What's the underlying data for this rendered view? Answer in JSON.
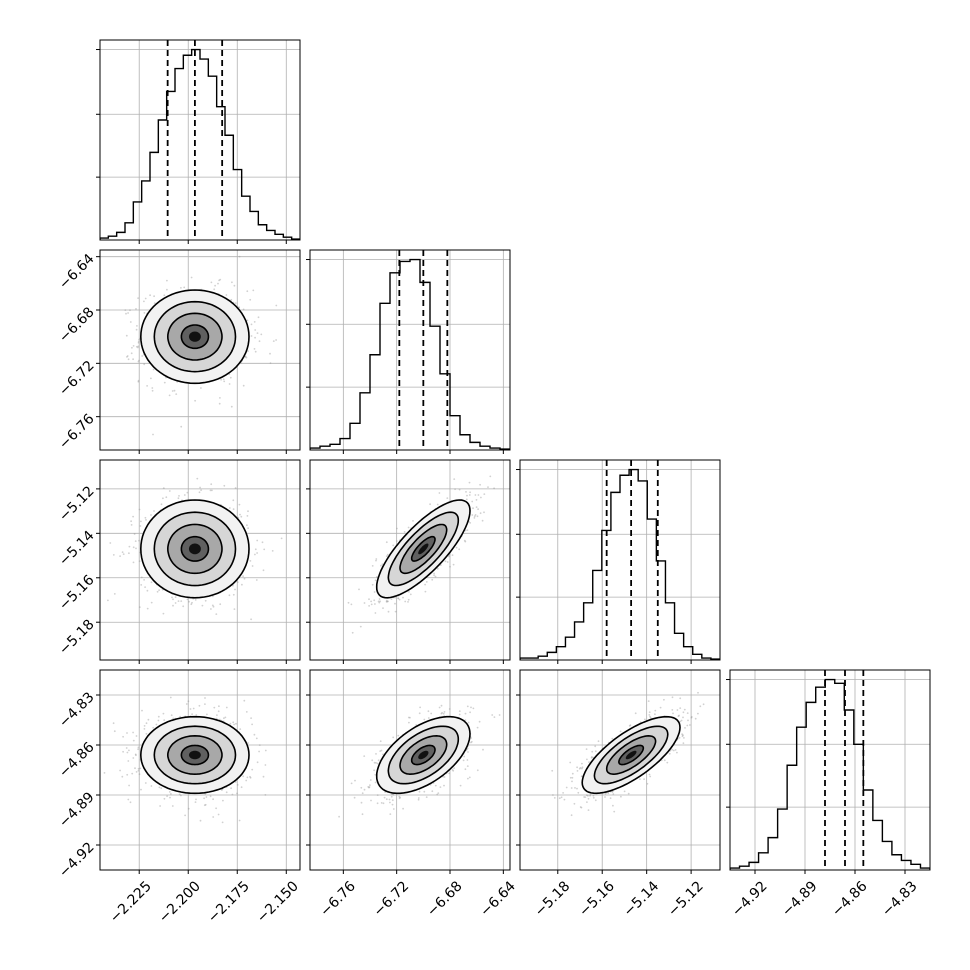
{
  "chart_data": {
    "type": "corner",
    "title": "",
    "parameters": [
      {
        "range": [
          -2.245,
          -2.143
        ],
        "ticks": [
          -2.225,
          -2.2,
          -2.175,
          -2.15
        ],
        "tick_labels": [
          "−2.225",
          "−2.200",
          "−2.175",
          "−2.150"
        ],
        "mean": -2.1966,
        "sigma": 0.0138,
        "quantiles": [
          -2.2105,
          -2.1966,
          -2.1827
        ],
        "hist_bins": [
          0.01,
          0.02,
          0.04,
          0.09,
          0.2,
          0.31,
          0.46,
          0.63,
          0.78,
          0.9,
          0.97,
          1.0,
          0.95,
          0.86,
          0.7,
          0.55,
          0.37,
          0.23,
          0.15,
          0.08,
          0.05,
          0.03,
          0.015,
          0.005
        ]
      },
      {
        "range": [
          -6.785,
          -6.635
        ],
        "ticks": [
          -6.76,
          -6.72,
          -6.68,
          -6.64
        ],
        "tick_labels": [
          "−6.76",
          "−6.72",
          "−6.68",
          "−6.64"
        ],
        "mean": -6.7,
        "sigma": 0.0175,
        "quantiles": [
          -6.718,
          -6.7,
          -6.682
        ],
        "hist_bins": [
          0.01,
          0.02,
          0.03,
          0.06,
          0.14,
          0.3,
          0.5,
          0.77,
          0.93,
          0.99,
          1.0,
          0.88,
          0.65,
          0.4,
          0.18,
          0.08,
          0.04,
          0.02,
          0.01,
          0.005
        ]
      },
      {
        "range": [
          -5.197,
          -5.107
        ],
        "ticks": [
          -5.18,
          -5.16,
          -5.14,
          -5.12
        ],
        "tick_labels": [
          "−5.18",
          "−5.16",
          "−5.14",
          "−5.12"
        ],
        "mean": -5.147,
        "sigma": 0.011,
        "quantiles": [
          -5.158,
          -5.147,
          -5.135
        ],
        "hist_bins": [
          0.01,
          0.01,
          0.02,
          0.04,
          0.07,
          0.12,
          0.2,
          0.3,
          0.47,
          0.68,
          0.88,
          0.97,
          1.0,
          0.94,
          0.74,
          0.52,
          0.3,
          0.14,
          0.07,
          0.03,
          0.01,
          0.005
        ]
      },
      {
        "range": [
          -4.935,
          -4.815
        ],
        "ticks": [
          -4.92,
          -4.89,
          -4.86,
          -4.83
        ],
        "tick_labels": [
          "−4.92",
          "−4.89",
          "−4.86",
          "−4.83"
        ],
        "mean": -4.866,
        "sigma": 0.0115,
        "quantiles": [
          -4.878,
          -4.866,
          -4.855
        ],
        "hist_bins": [
          0.01,
          0.02,
          0.04,
          0.09,
          0.17,
          0.32,
          0.55,
          0.75,
          0.88,
          0.96,
          1.0,
          0.98,
          0.84,
          0.66,
          0.42,
          0.26,
          0.15,
          0.08,
          0.05,
          0.03,
          0.01
        ]
      }
    ],
    "correlations": [
      [
        1.0,
        0.0,
        0.0,
        0.0
      ],
      [
        0.0,
        1.0,
        0.78,
        0.55
      ],
      [
        0.0,
        0.78,
        1.0,
        0.72
      ],
      [
        0.0,
        0.55,
        0.72,
        1.0
      ]
    ],
    "contour_levels_sigma": [
      0.5,
      1.0,
      1.5,
      2.0
    ],
    "grid": true,
    "quantile_line_style": "dashed",
    "colors": {
      "line": "#000000",
      "grid": "#b0b0b0",
      "scatter": "#9a9a9a"
    }
  }
}
